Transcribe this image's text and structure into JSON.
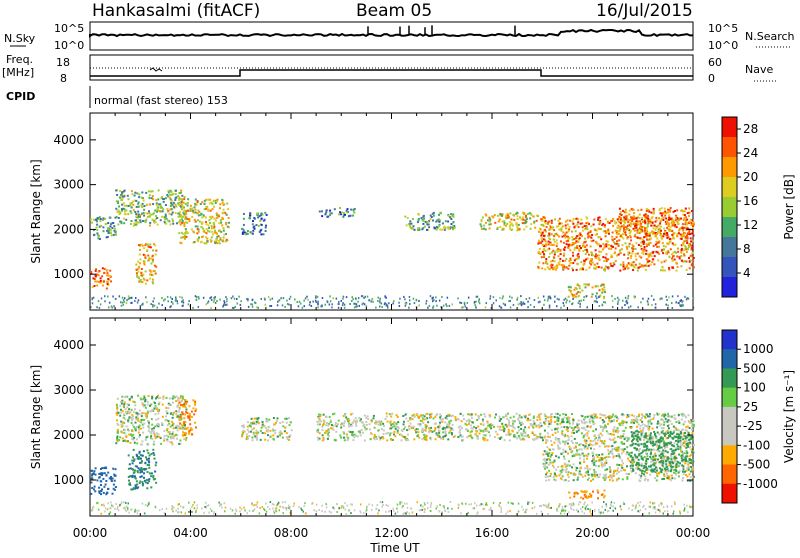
{
  "header": {
    "station": "Hankasalmi (fitACF)",
    "beam": "Beam 05",
    "date": "16/Jul/2015"
  },
  "top_panel": {
    "left_label_1": "N.Sky",
    "left_label_2": "Freq.",
    "left_label_2b": "[MHz]",
    "left_label_3": "CPID",
    "right_label_1": "N.Search",
    "right_label_2": "Nave",
    "left_ticks_1": [
      "10^5",
      "10^0"
    ],
    "right_ticks_1": [
      "10^5",
      "10^0"
    ],
    "left_ticks_2": [
      "18",
      "8"
    ],
    "right_ticks_2": [
      "60",
      "0"
    ],
    "cpid_text": "normal (fast stereo) 153"
  },
  "colors": {
    "power_scale": [
      "#2222dd",
      "#3355bb",
      "#447799",
      "#44aa66",
      "#99cc33",
      "#ddcc22",
      "#ff9900",
      "#ff5500",
      "#ee1100"
    ],
    "velocity_scale": [
      "#2233cc",
      "#2266aa",
      "#339955",
      "#66cc44",
      "#c8c8c0",
      "#c8c8c0",
      "#ffaa00",
      "#ff6600",
      "#ee1100"
    ]
  },
  "chart_data": [
    {
      "type": "heatmap",
      "title": "",
      "xlabel": "Time UT",
      "ylabel": "Slant Range [km]",
      "x_ticks": [
        "00:00",
        "04:00",
        "08:00",
        "12:00",
        "16:00",
        "20:00",
        "00:00"
      ],
      "y_ticks": [
        "1000",
        "2000",
        "3000",
        "4000"
      ],
      "ylim": [
        200,
        4600
      ],
      "xlim_hours": [
        0,
        24
      ],
      "colorbar": {
        "label": "Power [dB]",
        "ticks": [
          "4",
          "8",
          "12",
          "16",
          "20",
          "24",
          "28"
        ],
        "range": [
          0,
          30
        ]
      },
      "regions": [
        {
          "t": [
            0.0,
            0.8
          ],
          "r": [
            700,
            1200
          ],
          "level": 24
        },
        {
          "t": [
            0.0,
            1.0
          ],
          "r": [
            1800,
            2300
          ],
          "level": 10
        },
        {
          "t": [
            1.0,
            3.8
          ],
          "r": [
            2100,
            2900
          ],
          "level": 14
        },
        {
          "t": [
            1.8,
            2.6
          ],
          "r": [
            800,
            1700
          ],
          "level": 20
        },
        {
          "t": [
            3.5,
            5.5
          ],
          "r": [
            1700,
            2700
          ],
          "level": 18
        },
        {
          "t": [
            6.0,
            7.0
          ],
          "r": [
            1900,
            2400
          ],
          "level": 8
        },
        {
          "t": [
            9.0,
            10.5
          ],
          "r": [
            2300,
            2500
          ],
          "level": 8
        },
        {
          "t": [
            12.5,
            14.5
          ],
          "r": [
            2000,
            2400
          ],
          "level": 12
        },
        {
          "t": [
            15.5,
            17.8
          ],
          "r": [
            2000,
            2400
          ],
          "level": 18
        },
        {
          "t": [
            17.8,
            24.0
          ],
          "r": [
            1100,
            2300
          ],
          "level": 22
        },
        {
          "t": [
            19.0,
            20.5
          ],
          "r": [
            500,
            800
          ],
          "level": 18
        },
        {
          "t": [
            21.0,
            24.0
          ],
          "r": [
            1800,
            2500
          ],
          "level": 24
        }
      ]
    },
    {
      "type": "heatmap",
      "title": "",
      "xlabel": "Time UT",
      "ylabel": "Slant Range [km]",
      "x_ticks": [
        "00:00",
        "04:00",
        "08:00",
        "12:00",
        "16:00",
        "20:00",
        "00:00"
      ],
      "y_ticks": [
        "1000",
        "2000",
        "3000",
        "4000"
      ],
      "ylim": [
        200,
        4600
      ],
      "xlim_hours": [
        0,
        24
      ],
      "colorbar": {
        "label": "Velocity [m s⁻¹]",
        "ticks": [
          "1000",
          "500",
          "100",
          "25",
          "-25",
          "-100",
          "-500",
          "-1000"
        ]
      },
      "regions": [
        {
          "t": [
            0.0,
            1.0
          ],
          "r": [
            700,
            1300
          ],
          "velocity": 600
        },
        {
          "t": [
            1.0,
            3.8
          ],
          "r": [
            1800,
            2900
          ],
          "velocity": 0
        },
        {
          "t": [
            1.5,
            2.6
          ],
          "r": [
            800,
            1700
          ],
          "velocity": 300
        },
        {
          "t": [
            3.5,
            4.2
          ],
          "r": [
            2000,
            2800
          ],
          "velocity": -300
        },
        {
          "t": [
            6.0,
            8.0
          ],
          "r": [
            1900,
            2400
          ],
          "velocity": 0
        },
        {
          "t": [
            9.0,
            18.0
          ],
          "r": [
            1900,
            2500
          ],
          "velocity": 0
        },
        {
          "t": [
            18.0,
            24.0
          ],
          "r": [
            1000,
            2500
          ],
          "velocity": 0
        },
        {
          "t": [
            19.0,
            20.5
          ],
          "r": [
            600,
            800
          ],
          "velocity": -300
        },
        {
          "t": [
            21.5,
            24.0
          ],
          "r": [
            1200,
            2100
          ],
          "velocity": 200
        }
      ]
    }
  ]
}
